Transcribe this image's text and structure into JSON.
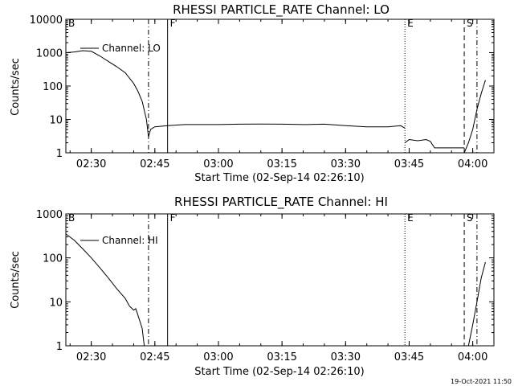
{
  "footer_timestamp": "19-Oct-2021 11:50",
  "chart_data": [
    {
      "type": "line",
      "title": "RHESSI PARTICLE_RATE Channel: LO",
      "xlabel": "Start Time (02-Sep-14 02:26:10)",
      "ylabel": "Counts/sec",
      "y_scale": "log",
      "ylim": [
        1,
        10000
      ],
      "xlim": [
        "02:24",
        "04:05"
      ],
      "x_ticks": [
        "02:30",
        "02:45",
        "03:00",
        "03:15",
        "03:30",
        "03:45",
        "04:00"
      ],
      "y_ticks": [
        "1",
        "10",
        "100",
        "1000",
        "10000"
      ],
      "legend": {
        "label": "Channel: LO",
        "placement": "top-left"
      },
      "markers": [
        {
          "label": "B",
          "x": "02:24",
          "style": "solid"
        },
        {
          "label": "",
          "x": "02:43.5",
          "style": "dashdot"
        },
        {
          "label": "F",
          "x": "02:48",
          "style": "solid"
        },
        {
          "label": "E",
          "x": "03:44",
          "style": "dotted"
        },
        {
          "label": "S",
          "x": "03:58",
          "style": "dashed"
        },
        {
          "label": "",
          "x": "04:01",
          "style": "dashdot"
        }
      ],
      "series": [
        {
          "name": "Channel: LO",
          "segments": [
            [
              [
                "02:24",
                1000
              ],
              [
                "02:26",
                1050
              ],
              [
                "02:28",
                1150
              ],
              [
                "02:30",
                1100
              ],
              [
                "02:32",
                800
              ],
              [
                "02:34",
                550
              ],
              [
                "02:36",
                380
              ],
              [
                "02:38",
                250
              ],
              [
                "02:40",
                120
              ],
              [
                "02:41",
                70
              ],
              [
                "02:42",
                35
              ],
              [
                "02:43",
                10
              ],
              [
                "02:43.5",
                3
              ],
              [
                "02:44",
                5
              ],
              [
                "02:45",
                6
              ],
              [
                "02:48",
                6.5
              ],
              [
                "02:52",
                7
              ],
              [
                "02:56",
                7
              ],
              [
                "03:00",
                7
              ],
              [
                "03:05",
                7.2
              ],
              [
                "03:10",
                7.3
              ],
              [
                "03:15",
                7.2
              ],
              [
                "03:20",
                7.0
              ],
              [
                "03:25",
                7.2
              ],
              [
                "03:30",
                6.5
              ],
              [
                "03:35",
                6.0
              ],
              [
                "03:40",
                6.0
              ],
              [
                "03:43",
                6.5
              ],
              [
                "03:44",
                5.5
              ]
            ],
            [
              [
                "03:44",
                2
              ],
              [
                "03:45",
                2.5
              ],
              [
                "03:47",
                2.3
              ],
              [
                "03:49",
                2.5
              ],
              [
                "03:50",
                2.2
              ],
              [
                "03:51",
                1.4
              ],
              [
                "03:56",
                1.4
              ],
              [
                "03:58",
                1.4
              ]
            ],
            [
              [
                "03:58",
                1
              ],
              [
                "03:59",
                2
              ],
              [
                "04:00",
                5
              ],
              [
                "04:01",
                20
              ],
              [
                "04:02",
                60
              ],
              [
                "04:03",
                150
              ]
            ]
          ]
        }
      ]
    },
    {
      "type": "line",
      "title": "RHESSI PARTICLE_RATE Channel: HI",
      "xlabel": "Start Time (02-Sep-14 02:26:10)",
      "ylabel": "Counts/sec",
      "y_scale": "log",
      "ylim": [
        1,
        1000
      ],
      "xlim": [
        "02:24",
        "04:05"
      ],
      "x_ticks": [
        "02:30",
        "02:45",
        "03:00",
        "03:15",
        "03:30",
        "03:45",
        "04:00"
      ],
      "y_ticks": [
        "1",
        "10",
        "100",
        "1000"
      ],
      "legend": {
        "label": "Channel: HI",
        "placement": "top-left"
      },
      "markers": [
        {
          "label": "B",
          "x": "02:24",
          "style": "solid"
        },
        {
          "label": "",
          "x": "02:43.5",
          "style": "dashdot"
        },
        {
          "label": "F",
          "x": "02:48",
          "style": "solid"
        },
        {
          "label": "E",
          "x": "03:44",
          "style": "dotted"
        },
        {
          "label": "S",
          "x": "03:58",
          "style": "dashed"
        },
        {
          "label": "",
          "x": "04:01",
          "style": "dashdot"
        }
      ],
      "series": [
        {
          "name": "Channel: HI",
          "segments": [
            [
              [
                "02:24",
                350
              ],
              [
                "02:26",
                250
              ],
              [
                "02:28",
                160
              ],
              [
                "02:30",
                100
              ],
              [
                "02:32",
                60
              ],
              [
                "02:34",
                35
              ],
              [
                "02:36",
                20
              ],
              [
                "02:38",
                12
              ],
              [
                "02:39",
                8
              ],
              [
                "02:40",
                6.5
              ],
              [
                "02:40.5",
                7
              ],
              [
                "02:41",
                5
              ],
              [
                "02:42",
                2.5
              ],
              [
                "02:42.5",
                1
              ]
            ],
            [
              [
                "03:59",
                1
              ],
              [
                "04:00",
                3
              ],
              [
                "04:01",
                10
              ],
              [
                "04:02",
                35
              ],
              [
                "04:03",
                80
              ]
            ]
          ]
        }
      ]
    }
  ]
}
